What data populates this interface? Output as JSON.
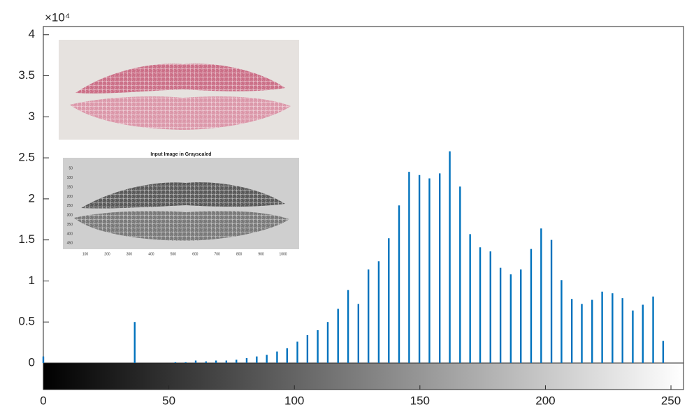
{
  "chart_data": {
    "type": "stem",
    "y_exponent_label": "×10⁴",
    "color": "#0072bd",
    "grid": false,
    "xlim": [
      0,
      255
    ],
    "ylim": [
      0,
      4.1
    ],
    "xticks": [
      0,
      50,
      100,
      150,
      200,
      250
    ],
    "yticks": [
      0,
      0.5,
      1,
      1.5,
      2,
      2.5,
      3,
      3.5,
      4
    ],
    "x": [
      0,
      36.4,
      52.6,
      56.7,
      60.7,
      64.8,
      68.8,
      72.9,
      76.9,
      81.0,
      85.0,
      89.0,
      93.1,
      97.1,
      101.2,
      105.2,
      109.3,
      113.3,
      117.4,
      121.4,
      125.5,
      129.5,
      133.6,
      137.6,
      141.7,
      145.7,
      149.8,
      153.8,
      157.9,
      161.9,
      166.0,
      170.0,
      174.0,
      178.1,
      182.1,
      186.2,
      190.2,
      194.3,
      198.3,
      202.4,
      206.4,
      210.5,
      214.5,
      218.6,
      222.6,
      226.7,
      230.7,
      234.8,
      238.8,
      242.9,
      246.9
    ],
    "values": [
      0.08,
      0.5,
      0.01,
      0.01,
      0.03,
      0.02,
      0.03,
      0.03,
      0.04,
      0.06,
      0.08,
      0.1,
      0.14,
      0.18,
      0.26,
      0.34,
      0.4,
      0.5,
      0.66,
      0.89,
      0.72,
      1.14,
      1.24,
      1.52,
      1.92,
      2.33,
      2.29,
      2.25,
      2.31,
      2.58,
      2.15,
      1.57,
      1.41,
      1.36,
      1.16,
      1.08,
      1.14,
      1.39,
      1.64,
      1.5,
      1.01,
      0.78,
      0.72,
      0.77,
      0.87,
      0.85,
      0.79,
      0.64,
      0.71,
      0.81,
      0.27
    ],
    "inset": {
      "title": "Input Image in Grayscaled",
      "yticks": [
        50,
        100,
        150,
        200,
        250,
        300,
        350,
        400,
        450
      ],
      "xticks": [
        100,
        200,
        300,
        400,
        500,
        600,
        700,
        800,
        900,
        1000
      ]
    }
  }
}
